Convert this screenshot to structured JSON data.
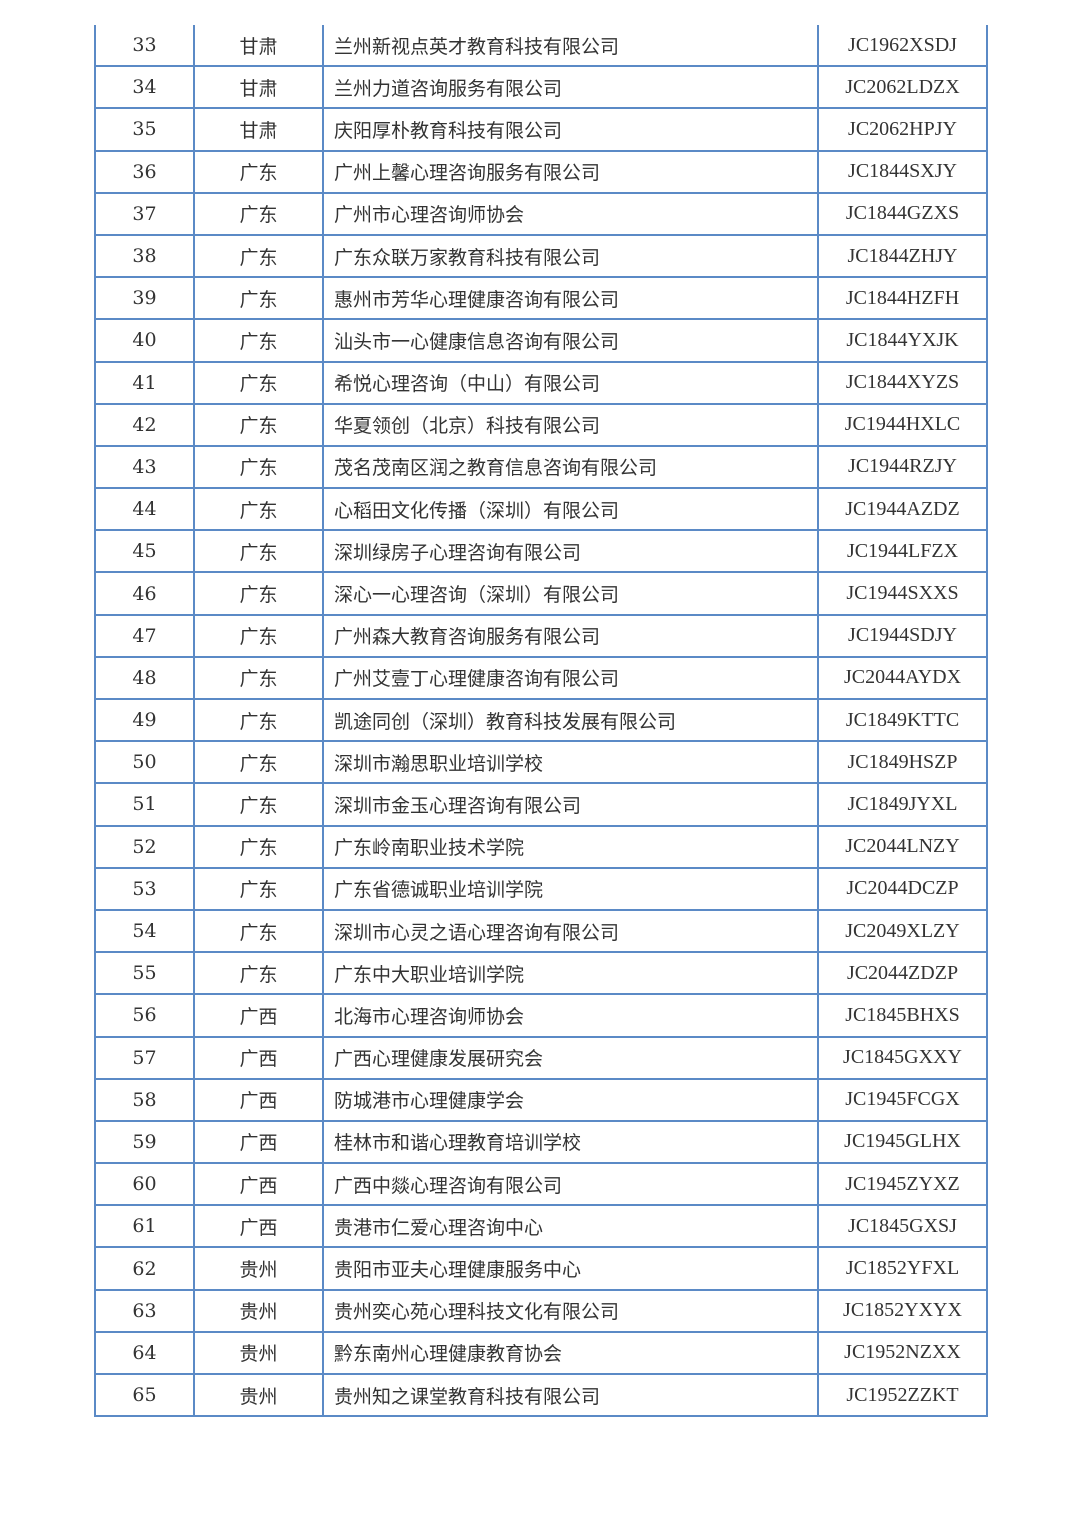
{
  "table": {
    "rows": [
      {
        "no": "33",
        "province": "甘肃",
        "name": "兰州新视点英才教育科技有限公司",
        "code": "JC1962XSDJ"
      },
      {
        "no": "34",
        "province": "甘肃",
        "name": "兰州力道咨询服务有限公司",
        "code": "JC2062LDZX"
      },
      {
        "no": "35",
        "province": "甘肃",
        "name": "庆阳厚朴教育科技有限公司",
        "code": "JC2062HPJY"
      },
      {
        "no": "36",
        "province": "广东",
        "name": "广州上馨心理咨询服务有限公司",
        "code": "JC1844SXJY"
      },
      {
        "no": "37",
        "province": "广东",
        "name": "广州市心理咨询师协会",
        "code": "JC1844GZXS"
      },
      {
        "no": "38",
        "province": "广东",
        "name": "广东众联万家教育科技有限公司",
        "code": "JC1844ZHJY"
      },
      {
        "no": "39",
        "province": "广东",
        "name": "惠州市芳华心理健康咨询有限公司",
        "code": "JC1844HZFH"
      },
      {
        "no": "40",
        "province": "广东",
        "name": "汕头市一心健康信息咨询有限公司",
        "code": "JC1844YXJK"
      },
      {
        "no": "41",
        "province": "广东",
        "name": "希悦心理咨询（中山）有限公司",
        "code": "JC1844XYZS"
      },
      {
        "no": "42",
        "province": "广东",
        "name": "华夏领创（北京）科技有限公司",
        "code": "JC1944HXLC"
      },
      {
        "no": "43",
        "province": "广东",
        "name": "茂名茂南区润之教育信息咨询有限公司",
        "code": "JC1944RZJY"
      },
      {
        "no": "44",
        "province": "广东",
        "name": "心稻田文化传播（深圳）有限公司",
        "code": "JC1944AZDZ"
      },
      {
        "no": "45",
        "province": "广东",
        "name": "深圳绿房子心理咨询有限公司",
        "code": "JC1944LFZX"
      },
      {
        "no": "46",
        "province": "广东",
        "name": "深心一心理咨询（深圳）有限公司",
        "code": "JC1944SXXS"
      },
      {
        "no": "47",
        "province": "广东",
        "name": "广州森大教育咨询服务有限公司",
        "code": "JC1944SDJY"
      },
      {
        "no": "48",
        "province": "广东",
        "name": "广州艾壹丁心理健康咨询有限公司",
        "code": "JC2044AYDX"
      },
      {
        "no": "49",
        "province": "广东",
        "name": "凯途同创（深圳）教育科技发展有限公司",
        "code": "JC1849KTTC"
      },
      {
        "no": "50",
        "province": "广东",
        "name": "深圳市瀚思职业培训学校",
        "code": "JC1849HSZP"
      },
      {
        "no": "51",
        "province": "广东",
        "name": "深圳市金玉心理咨询有限公司",
        "code": "JC1849JYXL"
      },
      {
        "no": "52",
        "province": "广东",
        "name": "广东岭南职业技术学院",
        "code": "JC2044LNZY"
      },
      {
        "no": "53",
        "province": "广东",
        "name": "广东省德诚职业培训学院",
        "code": "JC2044DCZP"
      },
      {
        "no": "54",
        "province": "广东",
        "name": "深圳市心灵之语心理咨询有限公司",
        "code": "JC2049XLZY"
      },
      {
        "no": "55",
        "province": "广东",
        "name": "广东中大职业培训学院",
        "code": "JC2044ZDZP"
      },
      {
        "no": "56",
        "province": "广西",
        "name": "北海市心理咨询师协会",
        "code": "JC1845BHXS"
      },
      {
        "no": "57",
        "province": "广西",
        "name": "广西心理健康发展研究会",
        "code": "JC1845GXXY"
      },
      {
        "no": "58",
        "province": "广西",
        "name": "防城港市心理健康学会",
        "code": "JC1945FCGX"
      },
      {
        "no": "59",
        "province": "广西",
        "name": "桂林市和谐心理教育培训学校",
        "code": "JC1945GLHX"
      },
      {
        "no": "60",
        "province": "广西",
        "name": "广西中燚心理咨询有限公司",
        "code": "JC1945ZYXZ"
      },
      {
        "no": "61",
        "province": "广西",
        "name": "贵港市仁爱心理咨询中心",
        "code": "JC1845GXSJ"
      },
      {
        "no": "62",
        "province": "贵州",
        "name": "贵阳市亚夫心理健康服务中心",
        "code": "JC1852YFXL"
      },
      {
        "no": "63",
        "province": "贵州",
        "name": "贵州奕心苑心理科技文化有限公司",
        "code": "JC1852YXYX"
      },
      {
        "no": "64",
        "province": "贵州",
        "name": "黔东南州心理健康教育协会",
        "code": "JC1952NZXX"
      },
      {
        "no": "65",
        "province": "贵州",
        "name": "贵州知之课堂教育科技有限公司",
        "code": "JC1952ZZKT"
      }
    ]
  }
}
